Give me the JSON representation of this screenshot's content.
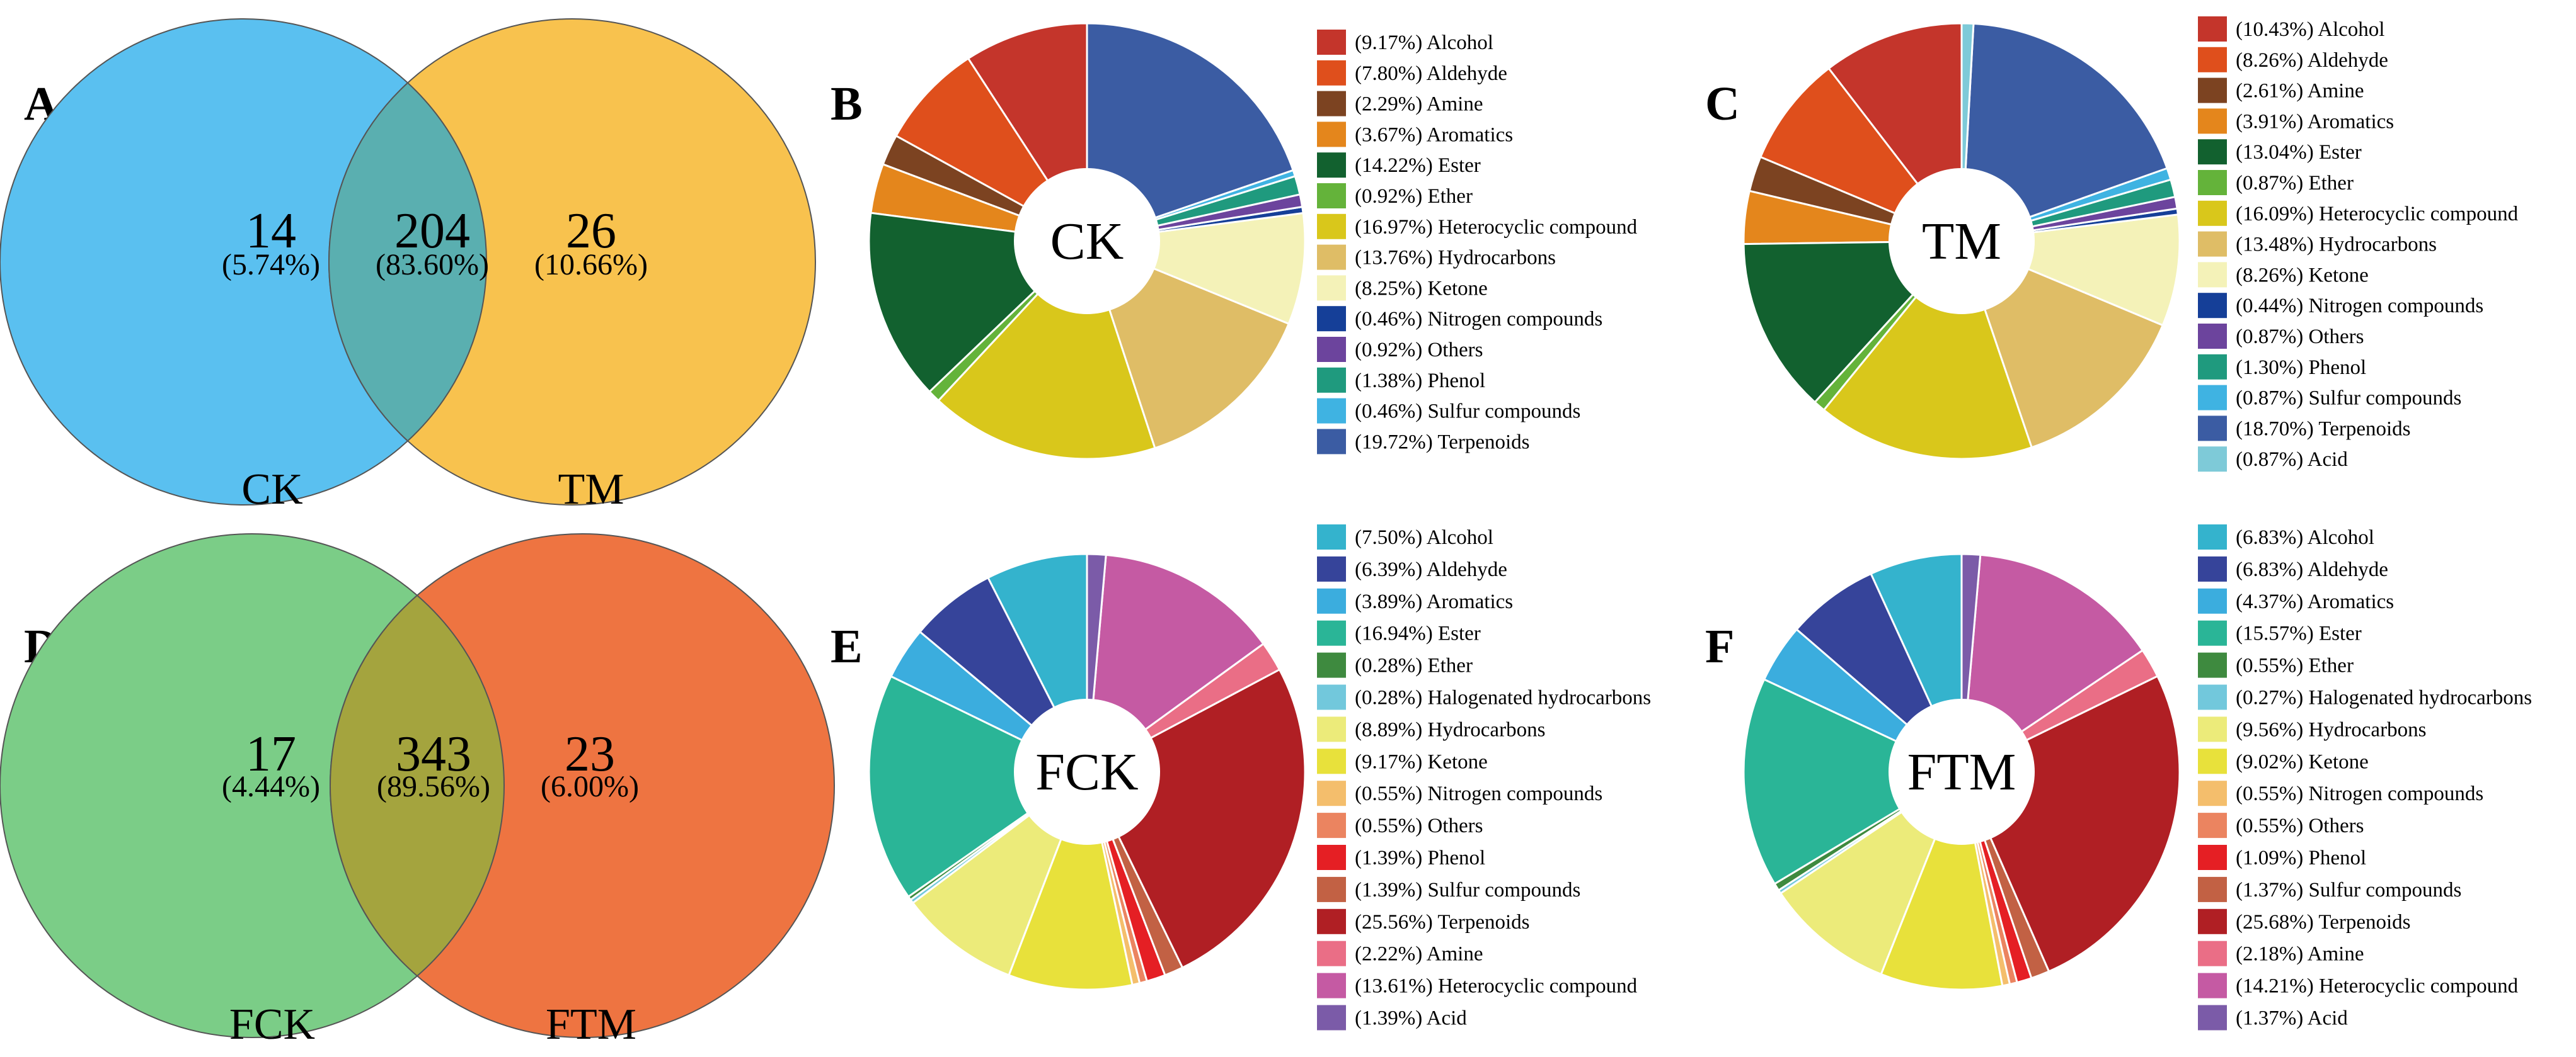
{
  "chart_data": [
    {
      "type": "venn",
      "panel": "A",
      "sets": [
        "CK",
        "TM"
      ],
      "colors": [
        "#5ac0f0",
        "#f8c24e"
      ],
      "overlap_color": "#5aafb0",
      "regions": [
        {
          "count": "14",
          "percent": "(5.74%)"
        },
        {
          "count": "204",
          "percent": "(83.60%)"
        },
        {
          "count": "26",
          "percent": "(10.66%)"
        }
      ]
    },
    {
      "type": "pie",
      "panel": "B",
      "center_label": "CK",
      "slices": [
        {
          "label": "(9.17%) Alcohol",
          "value": 9.17,
          "color": "#c4352b"
        },
        {
          "label": "(7.80%) Aldehyde",
          "value": 7.8,
          "color": "#df4f1c"
        },
        {
          "label": "(2.29%) Amine",
          "value": 2.29,
          "color": "#7c4321"
        },
        {
          "label": "(3.67%) Aromatics",
          "value": 3.67,
          "color": "#e4861c"
        },
        {
          "label": "(14.22%) Ester",
          "value": 14.22,
          "color": "#12612f"
        },
        {
          "label": "(0.92%) Ether",
          "value": 0.92,
          "color": "#64b33a"
        },
        {
          "label": "(16.97%) Heterocyclic compound",
          "value": 16.97,
          "color": "#d9c71b"
        },
        {
          "label": "(13.76%) Hydrocarbons",
          "value": 13.76,
          "color": "#dfbd66"
        },
        {
          "label": "(8.25%) Ketone",
          "value": 8.25,
          "color": "#f4f2b8"
        },
        {
          "label": "(0.46%) Nitrogen compounds",
          "value": 0.46,
          "color": "#153f98"
        },
        {
          "label": "(0.92%) Others",
          "value": 0.92,
          "color": "#6c449d"
        },
        {
          "label": "(1.38%) Phenol",
          "value": 1.38,
          "color": "#1f9a7e"
        },
        {
          "label": "(0.46%) Sulfur compounds",
          "value": 0.46,
          "color": "#3fb3e2"
        },
        {
          "label": "(19.72%)  Terpenoids",
          "value": 19.72,
          "color": "#3b5ca3"
        }
      ]
    },
    {
      "type": "pie",
      "panel": "C",
      "center_label": "TM",
      "slices": [
        {
          "label": "(10.43%) Alcohol",
          "value": 10.43,
          "color": "#c4352b"
        },
        {
          "label": "(8.26%) Aldehyde",
          "value": 8.26,
          "color": "#df4f1c"
        },
        {
          "label": "(2.61%) Amine",
          "value": 2.61,
          "color": "#7c4321"
        },
        {
          "label": "(3.91%) Aromatics",
          "value": 3.91,
          "color": "#e4861c"
        },
        {
          "label": "(13.04%) Ester",
          "value": 13.04,
          "color": "#12612f"
        },
        {
          "label": "(0.87%) Ether",
          "value": 0.87,
          "color": "#64b33a"
        },
        {
          "label": "(16.09%) Heterocyclic compound",
          "value": 16.09,
          "color": "#d9c71b"
        },
        {
          "label": "(13.48%) Hydrocarbons",
          "value": 13.48,
          "color": "#dfbd66"
        },
        {
          "label": "(8.26%) Ketone",
          "value": 8.26,
          "color": "#f4f2b8"
        },
        {
          "label": "(0.44%) Nitrogen compounds",
          "value": 0.44,
          "color": "#153f98"
        },
        {
          "label": "(0.87%) Others",
          "value": 0.87,
          "color": "#6c449d"
        },
        {
          "label": "(1.30%) Phenol",
          "value": 1.3,
          "color": "#1f9a7e"
        },
        {
          "label": "(0.87%) Sulfur compounds",
          "value": 0.87,
          "color": "#3fb3e2"
        },
        {
          "label": "(18.70%) Terpenoids",
          "value": 18.7,
          "color": "#3b5ca3"
        },
        {
          "label": "(0.87%) Acid",
          "value": 0.87,
          "color": "#7ecad8"
        }
      ]
    },
    {
      "type": "venn",
      "panel": "D",
      "sets": [
        "FCK",
        "FTM"
      ],
      "colors": [
        "#7bcd87",
        "#ee7441"
      ],
      "overlap_color": "#a4a43e",
      "regions": [
        {
          "count": "17",
          "percent": "(4.44%)"
        },
        {
          "count": "343",
          "percent": "(89.56%)"
        },
        {
          "count": "23",
          "percent": "(6.00%)"
        }
      ]
    },
    {
      "type": "pie",
      "panel": "E",
      "center_label": "FCK",
      "slices": [
        {
          "label": "(7.50%) Alcohol",
          "value": 7.5,
          "color": "#34b3cd"
        },
        {
          "label": "(6.39%) Aldehyde",
          "value": 6.39,
          "color": "#36449a"
        },
        {
          "label": "(3.89%) Aromatics",
          "value": 3.89,
          "color": "#3badde"
        },
        {
          "label": "(16.94%) Ester",
          "value": 16.94,
          "color": "#2ab597"
        },
        {
          "label": "(0.28%) Ether",
          "value": 0.28,
          "color": "#3e8a3f"
        },
        {
          "label": "(0.28%) Halogenated hydrocarbons",
          "value": 0.28,
          "color": "#72c8dc"
        },
        {
          "label": "(8.89%) Hydrocarbons",
          "value": 8.89,
          "color": "#eceb7a"
        },
        {
          "label": "(9.17%) Ketone",
          "value": 9.17,
          "color": "#e8e13b"
        },
        {
          "label": "(0.55%) Nitrogen compounds",
          "value": 0.55,
          "color": "#f4be6c"
        },
        {
          "label": "(0.55%) Others",
          "value": 0.55,
          "color": "#eb8460"
        },
        {
          "label": "(1.39%) Phenol",
          "value": 1.39,
          "color": "#e51f24"
        },
        {
          "label": "(1.39%) Sulfur compounds",
          "value": 1.39,
          "color": "#c26144"
        },
        {
          "label": "(25.56%) Terpenoids",
          "value": 25.56,
          "color": "#b01f24"
        },
        {
          "label": "(2.22%) Amine",
          "value": 2.22,
          "color": "#ea6e86"
        },
        {
          "label": "(13.61%) Heterocyclic compound",
          "value": 13.61,
          "color": "#c55aa3"
        },
        {
          "label": "(1.39%) Acid",
          "value": 1.39,
          "color": "#7b5ba8"
        }
      ]
    },
    {
      "type": "pie",
      "panel": "F",
      "center_label": "FTM",
      "slices": [
        {
          "label": "(6.83%) Alcohol",
          "value": 6.83,
          "color": "#34b3cd"
        },
        {
          "label": "(6.83%) Aldehyde",
          "value": 6.83,
          "color": "#36449a"
        },
        {
          "label": "(4.37%) Aromatics",
          "value": 4.37,
          "color": "#3badde"
        },
        {
          "label": "(15.57%) Ester",
          "value": 15.57,
          "color": "#2ab597"
        },
        {
          "label": "(0.55%) Ether",
          "value": 0.55,
          "color": "#3e8a3f"
        },
        {
          "label": "(0.27%) Halogenated hydrocarbons",
          "value": 0.27,
          "color": "#72c8dc"
        },
        {
          "label": "(9.56%) Hydrocarbons",
          "value": 9.56,
          "color": "#eceb7a"
        },
        {
          "label": "(9.02%) Ketone",
          "value": 9.02,
          "color": "#e8e13b"
        },
        {
          "label": "(0.55%) Nitrogen compounds",
          "value": 0.55,
          "color": "#f4be6c"
        },
        {
          "label": "(0.55%) Others",
          "value": 0.55,
          "color": "#eb8460"
        },
        {
          "label": "(1.09%) Phenol",
          "value": 1.09,
          "color": "#e51f24"
        },
        {
          "label": "(1.37%) Sulfur compounds",
          "value": 1.37,
          "color": "#c26144"
        },
        {
          "label": "(25.68%) Terpenoids",
          "value": 25.68,
          "color": "#b01f24"
        },
        {
          "label": "(2.18%) Amine",
          "value": 2.18,
          "color": "#ea6e86"
        },
        {
          "label": "(14.21%) Heterocyclic compound",
          "value": 14.21,
          "color": "#c55aa3"
        },
        {
          "label": "(1.37%) Acid",
          "value": 1.37,
          "color": "#7b5ba8"
        }
      ]
    }
  ]
}
